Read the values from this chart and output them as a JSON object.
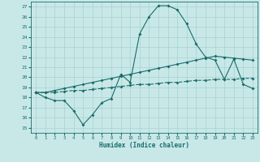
{
  "xlabel": "Humidex (Indice chaleur)",
  "bg_color": "#c8e8e8",
  "line_color": "#1a6b6b",
  "grid_color": "#a8d0d0",
  "xlim": [
    -0.5,
    23.5
  ],
  "ylim": [
    14.5,
    27.5
  ],
  "xticks": [
    0,
    1,
    2,
    3,
    4,
    5,
    6,
    7,
    8,
    9,
    10,
    11,
    12,
    13,
    14,
    15,
    16,
    17,
    18,
    19,
    20,
    21,
    22,
    23
  ],
  "yticks": [
    15,
    16,
    17,
    18,
    19,
    20,
    21,
    22,
    23,
    24,
    25,
    26,
    27
  ],
  "line1_x": [
    0,
    1,
    2,
    3,
    4,
    5,
    6,
    7,
    8,
    9,
    10,
    11,
    12,
    13,
    14,
    15,
    16,
    17,
    18,
    19,
    20,
    21,
    22,
    23
  ],
  "line1_y": [
    18.5,
    18.0,
    17.7,
    17.7,
    16.7,
    15.3,
    16.3,
    17.5,
    17.9,
    20.3,
    19.5,
    24.3,
    26.0,
    27.1,
    27.1,
    26.7,
    25.3,
    23.3,
    22.0,
    21.7,
    19.8,
    21.8,
    19.3,
    18.9
  ],
  "line2_x": [
    0,
    1,
    2,
    3,
    4,
    5,
    6,
    7,
    8,
    9,
    10,
    11,
    12,
    13,
    14,
    15,
    16,
    17,
    18,
    19,
    20,
    21,
    22,
    23
  ],
  "line2_y": [
    18.5,
    18.5,
    18.7,
    18.9,
    19.1,
    19.3,
    19.5,
    19.7,
    19.9,
    20.1,
    20.3,
    20.5,
    20.7,
    20.9,
    21.1,
    21.3,
    21.5,
    21.7,
    21.9,
    22.1,
    22.0,
    21.9,
    21.8,
    21.7
  ],
  "line3_x": [
    0,
    1,
    2,
    3,
    4,
    5,
    6,
    7,
    8,
    9,
    10,
    11,
    12,
    13,
    14,
    15,
    16,
    17,
    18,
    19,
    20,
    21,
    22,
    23
  ],
  "line3_y": [
    18.5,
    18.5,
    18.5,
    18.6,
    18.7,
    18.7,
    18.8,
    18.9,
    19.0,
    19.1,
    19.2,
    19.3,
    19.3,
    19.4,
    19.5,
    19.5,
    19.6,
    19.7,
    19.7,
    19.8,
    19.8,
    19.8,
    19.9,
    19.9
  ]
}
